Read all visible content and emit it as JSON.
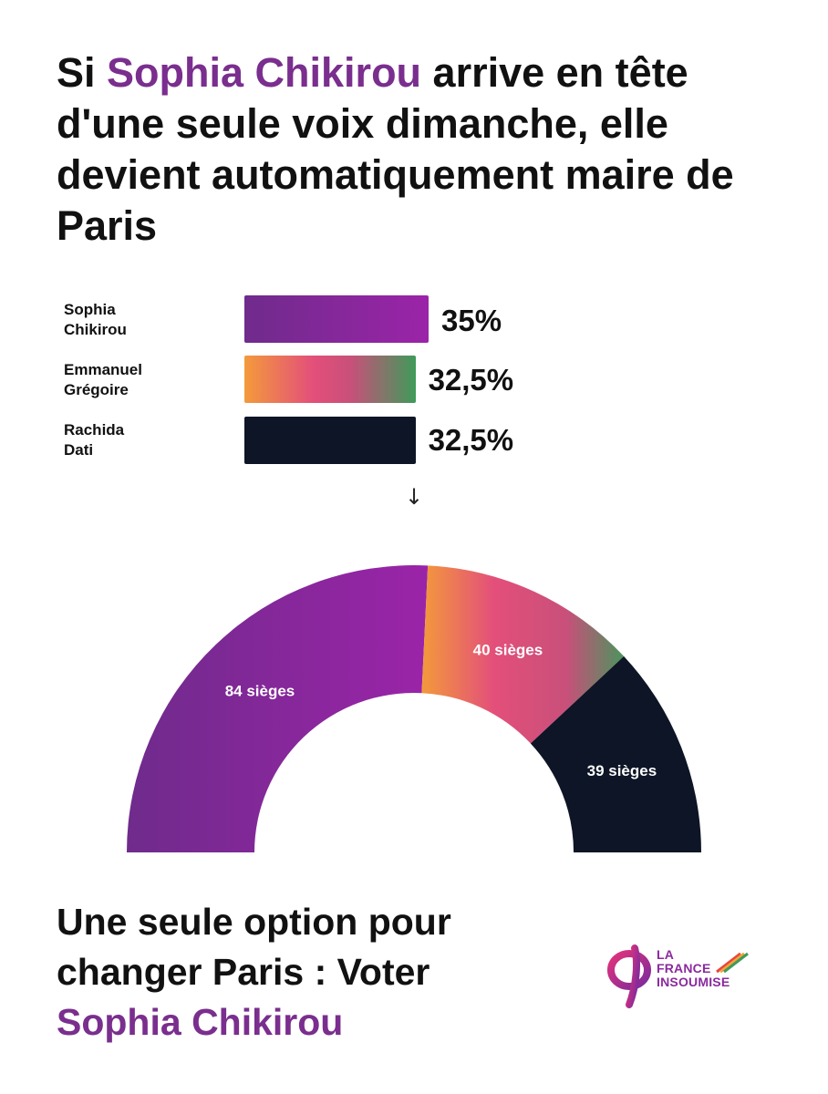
{
  "headline": {
    "pre": "Si ",
    "highlight": "Sophia Chikirou",
    "post": " arrive en tête d'une seule voix dimanche, elle devient automatiquement maire de Paris"
  },
  "arrow": "↓",
  "footer": {
    "line": "Une seule option pour changer Paris : Voter",
    "highlight": "Sophia Chikirou"
  },
  "logo": {
    "symbol": "φ",
    "line1": "LA",
    "line2": "FRANCE",
    "line3": "INSOUMISE"
  },
  "colors": {
    "accent": "#7a2e8e",
    "chikirou_start": "#6f2b8c",
    "chikirou_end": "#9b24a8",
    "gregoire_orange": "#f39a3b",
    "gregoire_pink": "#e34f7a",
    "gregoire_green": "#3f9b5a",
    "dati": "#0d1526"
  },
  "chart_data": [
    {
      "type": "bar",
      "orientation": "horizontal",
      "categories": [
        "Sophia Chikirou",
        "Emmanuel Grégoire",
        "Rachida Dati"
      ],
      "category_lines": [
        [
          "Sophia",
          "Chikirou"
        ],
        [
          "Emmanuel",
          "Grégoire"
        ],
        [
          "Rachida",
          "Dati"
        ]
      ],
      "values": [
        35,
        32.5,
        32.5
      ],
      "value_labels": [
        "35%",
        "32,5%",
        "32,5%"
      ],
      "unit": "%"
    },
    {
      "type": "pie",
      "style": "hemicycle",
      "categories": [
        "Sophia Chikirou",
        "Emmanuel Grégoire",
        "Rachida Dati"
      ],
      "values": [
        84,
        40,
        39
      ],
      "value_labels": [
        "84 sièges",
        "40 sièges",
        "39 sièges"
      ]
    }
  ]
}
